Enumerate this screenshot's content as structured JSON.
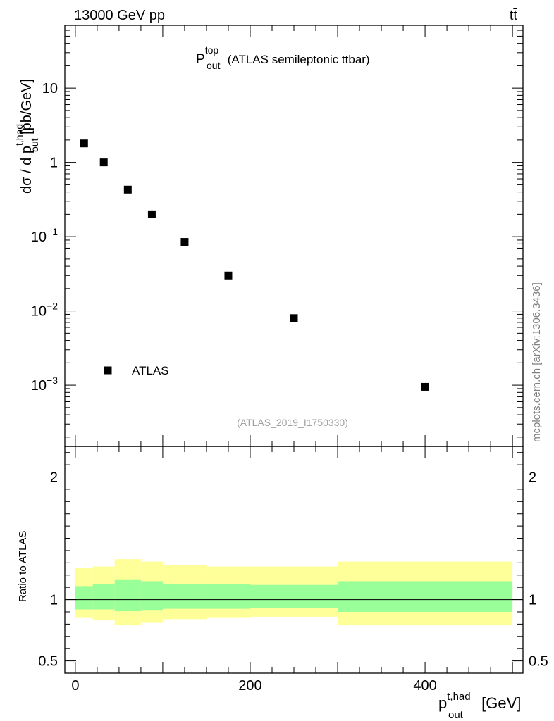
{
  "header": {
    "energy_label": "13000 GeV pp",
    "process_label": "tt̄"
  },
  "side_label": "mcplots.cern.ch [arXiv:1306.3436]",
  "chart_data": [
    {
      "type": "scatter",
      "panel": "main",
      "title_main": "P",
      "title_sup": "top",
      "title_sub": "out",
      "title_rest": "(ATLAS semileptonic ttbar)",
      "ylabel_prefix": "dσ / d p",
      "ylabel_sup": "t,had",
      "ylabel_sub": "out",
      "ylabel_suffix": "[pb/GeV]",
      "yscale": "log",
      "ylim": [
        0.00015,
        70
      ],
      "xlim": [
        -12,
        512
      ],
      "y_tick_labels": [
        {
          "value": 10,
          "base": "10",
          "exp": ""
        },
        {
          "value": 1,
          "base": "1",
          "exp": ""
        },
        {
          "value": 0.1,
          "base": "10",
          "exp": "−1"
        },
        {
          "value": 0.01,
          "base": "10",
          "exp": "−2"
        },
        {
          "value": 0.001,
          "base": "10",
          "exp": "−3"
        }
      ],
      "series": [
        {
          "name": "ATLAS",
          "points": [
            {
              "x": 10,
              "y": 1.8
            },
            {
              "x": 32.5,
              "y": 1.0
            },
            {
              "x": 60,
              "y": 0.43
            },
            {
              "x": 87.5,
              "y": 0.2
            },
            {
              "x": 125,
              "y": 0.085
            },
            {
              "x": 175,
              "y": 0.03
            },
            {
              "x": 250,
              "y": 0.008
            },
            {
              "x": 400,
              "y": 0.00095
            }
          ]
        }
      ],
      "legend": {
        "position": "bottom-left",
        "label": "ATLAS"
      },
      "analysis_label": "(ATLAS_2019_I1750330)"
    },
    {
      "type": "area",
      "panel": "ratio",
      "ylabel": "Ratio to ATLAS",
      "ylim": [
        0.4,
        2.25
      ],
      "xlim": [
        -12,
        512
      ],
      "y_tick_labels": [
        {
          "value": 2,
          "label": "2"
        },
        {
          "value": 1,
          "label": "1"
        },
        {
          "value": 0.5,
          "label": "0.5"
        }
      ],
      "x_tick_labels": [
        {
          "value": 0,
          "label": "0"
        },
        {
          "value": 200,
          "label": "200"
        },
        {
          "value": 400,
          "label": "400"
        }
      ],
      "xlabel_main": "p",
      "xlabel_sup": "t,had",
      "xlabel_sub": "out",
      "xlabel_unit": "[GeV]",
      "reference_line": 1.0,
      "bin_edges": [
        0,
        20,
        45,
        75,
        100,
        150,
        200,
        300,
        500
      ],
      "band_total": {
        "color": "#ffff99",
        "lo": [
          0.85,
          0.83,
          0.79,
          0.81,
          0.84,
          0.85,
          0.86,
          0.79
        ],
        "hi": [
          1.26,
          1.27,
          1.33,
          1.31,
          1.28,
          1.27,
          1.27,
          1.31
        ]
      },
      "band_stat": {
        "color": "#99ff99",
        "lo": [
          0.92,
          0.92,
          0.905,
          0.91,
          0.925,
          0.925,
          0.93,
          0.9
        ],
        "hi": [
          1.11,
          1.13,
          1.16,
          1.15,
          1.13,
          1.13,
          1.12,
          1.15
        ]
      }
    }
  ]
}
